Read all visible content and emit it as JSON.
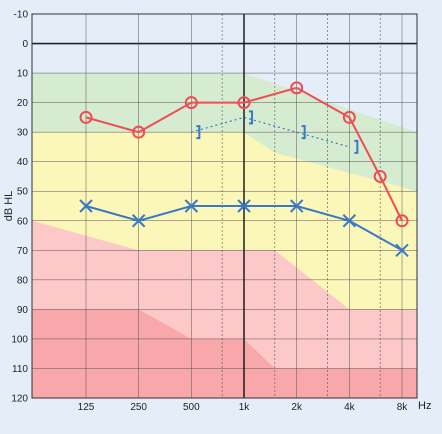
{
  "chart_data": {
    "type": "line",
    "ylabel": "dB HL",
    "x_unit_label": "Hz",
    "x_tick_labels": [
      "125",
      "250",
      "500",
      "1k",
      "2k",
      "4k",
      "8k"
    ],
    "y_ticks": [
      -10,
      0,
      10,
      20,
      30,
      40,
      50,
      60,
      70,
      80,
      90,
      100,
      110,
      120
    ],
    "ylim": [
      -10,
      120
    ],
    "y_inverted": true,
    "x_scale": "log2 octave",
    "grid": true,
    "series": [
      {
        "marker": "circle",
        "color": "#f04c56",
        "x": [
          "125",
          "250",
          "500",
          "1k",
          "2k",
          "4k",
          "6k",
          "8k"
        ],
        "values": [
          25,
          30,
          20,
          20,
          15,
          25,
          45,
          60
        ]
      },
      {
        "marker": "x",
        "color": "#3a78c8",
        "x": [
          "125",
          "250",
          "500",
          "1k",
          "2k",
          "4k",
          "8k"
        ],
        "values": [
          55,
          60,
          55,
          55,
          55,
          60,
          70
        ]
      },
      {
        "marker": "bracket",
        "color": "#3a78c8",
        "line_style": "dotted",
        "x": [
          "500",
          "1k",
          "2k",
          "4k"
        ],
        "values": [
          30,
          25,
          30,
          35
        ]
      }
    ],
    "colors": {
      "background": "#e5eef8",
      "zone_normal": "#d6ecd0",
      "zone_mild": "#fbf7b9",
      "zone_moderate": "#fdc8c8",
      "zone_severe": "#f8a7ab",
      "grid": "#333333"
    }
  }
}
